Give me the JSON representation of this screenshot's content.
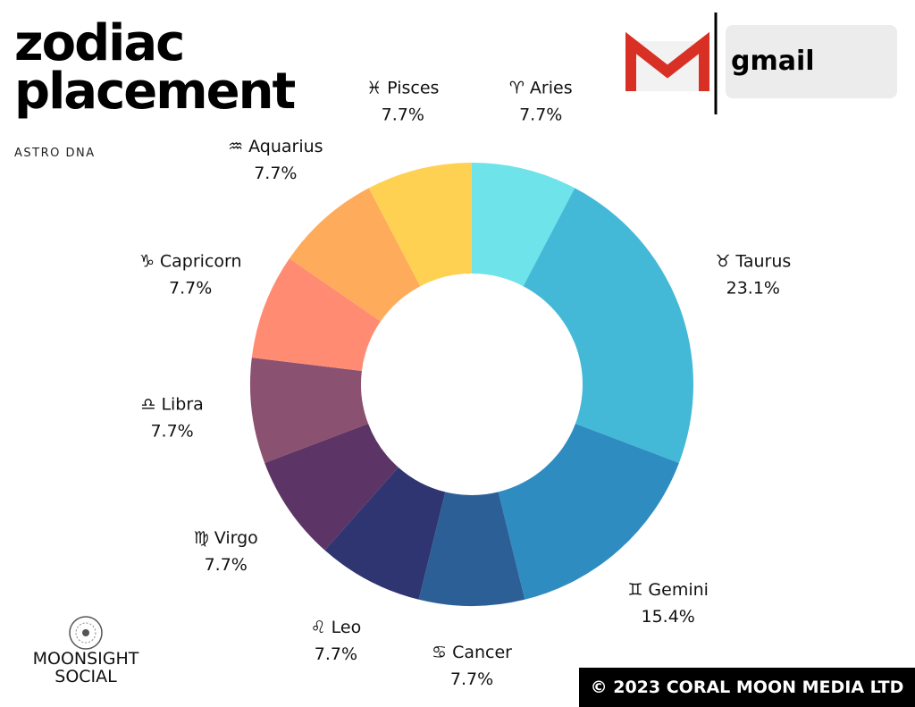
{
  "chart_data": {
    "type": "donut",
    "title": "zodiac placement",
    "subtitle": "ASTRO DNA",
    "categories": [
      "♈ Aries",
      "♉ Taurus",
      "♊ Gemini",
      "♋ Cancer",
      "♌ Leo",
      "♍ Virgo",
      "♎ Libra",
      "♑ Capricorn",
      "♒ Aquarius",
      "♓ Pisces"
    ],
    "values": [
      7.7,
      23.1,
      15.4,
      7.7,
      7.7,
      7.7,
      7.7,
      7.7,
      7.7,
      7.7
    ],
    "value_labels": [
      "7.7%",
      "23.1%",
      "15.4%",
      "7.7%",
      "7.7%",
      "7.7%",
      "7.7%",
      "7.7%",
      "7.7%",
      "7.7%"
    ],
    "colors": [
      "#6ee3e9",
      "#44b9d7",
      "#2e8cc0",
      "#2d5f97",
      "#2f3571",
      "#5c3566",
      "#8b5170",
      "#ff8c72",
      "#ffab5c",
      "#ffd152"
    ]
  },
  "branding": {
    "gmail": "gmail",
    "logo": "MOONSIGHT SOCIAL",
    "copyright": "© 2023 CORAL MOON MEDIA LTD"
  }
}
